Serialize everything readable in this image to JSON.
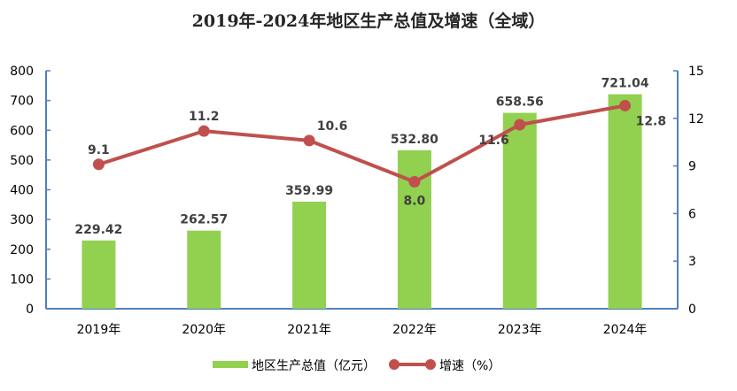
{
  "chart_data": {
    "type": "bar+line",
    "title": "2019年-2024年地区生产总值及增速（全域）",
    "categories": [
      "2019年",
      "2020年",
      "2021年",
      "2022年",
      "2023年",
      "2024年"
    ],
    "series": [
      {
        "name": "地区生产总值（亿元）",
        "type": "bar",
        "axis": "left",
        "color": "#92D050",
        "values": [
          229.42,
          262.57,
          359.99,
          532.8,
          658.56,
          721.04
        ],
        "labels": [
          "229.42",
          "262.57",
          "359.99",
          "532.80",
          "658.56",
          "721.04"
        ]
      },
      {
        "name": "增速（%）",
        "type": "line",
        "axis": "right",
        "color": "#C0504D",
        "values": [
          9.1,
          11.2,
          10.6,
          8.0,
          11.6,
          12.8
        ],
        "labels": [
          "9.1",
          "11.2",
          "10.6",
          "8.0",
          "11.6",
          "12.8"
        ]
      }
    ],
    "y_left": {
      "range": [
        0,
        800
      ],
      "ticks": [
        "0",
        "100",
        "200",
        "300",
        "400",
        "500",
        "600",
        "700",
        "800"
      ],
      "tick_values": [
        0,
        100,
        200,
        300,
        400,
        500,
        600,
        700,
        800
      ]
    },
    "y_right": {
      "range": [
        0,
        15
      ],
      "ticks": [
        "0",
        "3",
        "6",
        "9",
        "12",
        "15"
      ],
      "tick_values": [
        0,
        3,
        6,
        9,
        12,
        15
      ]
    },
    "axis_color": "#4F81BD",
    "grid": false,
    "legend": {
      "position": "bottom",
      "items": [
        "地区生产总值（亿元）",
        "增速（%）"
      ]
    }
  }
}
